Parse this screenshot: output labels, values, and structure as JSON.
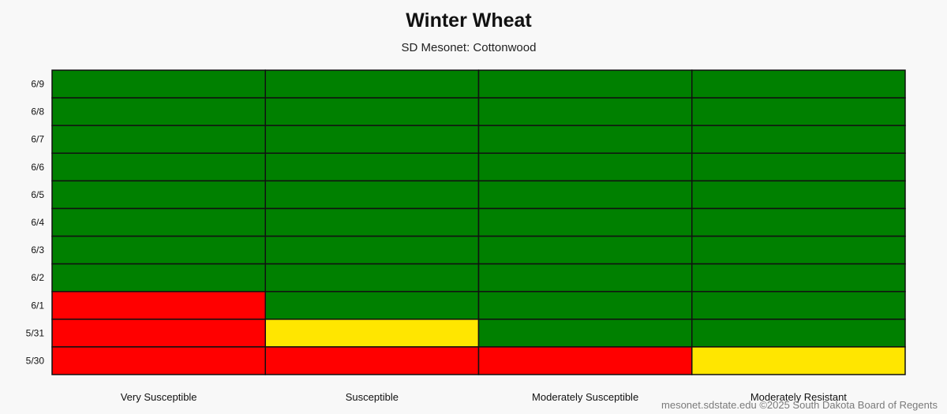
{
  "chart_data": {
    "type": "heatmap",
    "title": "Winter Wheat",
    "subtitle": "SD Mesonet: Cottonwood",
    "categories": [
      "Very Susceptible",
      "Susceptible",
      "Moderately Susceptible",
      "Moderately Resistant"
    ],
    "dates": [
      "6/9",
      "6/8",
      "6/7",
      "6/6",
      "6/5",
      "6/4",
      "6/3",
      "6/2",
      "6/1",
      "5/31",
      "5/30"
    ],
    "risk_levels": {
      "low": "#008000",
      "moderate": "#ffe600",
      "high": "#ff0000"
    },
    "grid": [
      [
        "low",
        "low",
        "low",
        "low"
      ],
      [
        "low",
        "low",
        "low",
        "low"
      ],
      [
        "low",
        "low",
        "low",
        "low"
      ],
      [
        "low",
        "low",
        "low",
        "low"
      ],
      [
        "low",
        "low",
        "low",
        "low"
      ],
      [
        "low",
        "low",
        "low",
        "low"
      ],
      [
        "low",
        "low",
        "low",
        "low"
      ],
      [
        "low",
        "low",
        "low",
        "low"
      ],
      [
        "high",
        "low",
        "low",
        "low"
      ],
      [
        "high",
        "moderate",
        "low",
        "low"
      ],
      [
        "high",
        "high",
        "high",
        "moderate"
      ]
    ]
  },
  "footer": {
    "credit": "mesonet.sdstate.edu ©2025 South Dakota Board of Regents"
  }
}
